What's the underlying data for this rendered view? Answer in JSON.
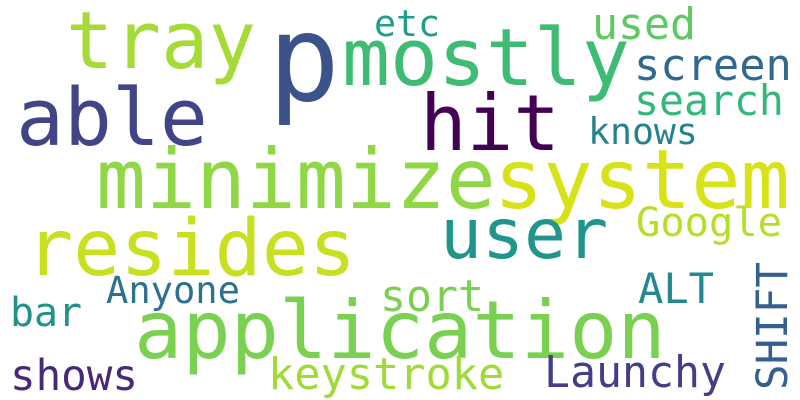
{
  "words": [
    {
      "id": "p",
      "text": "p",
      "color": "#3b528b"
    },
    {
      "id": "mostly",
      "text": "mostly",
      "color": "#3fbc73"
    },
    {
      "id": "tray",
      "text": "tray",
      "color": "#a5db36"
    },
    {
      "id": "able",
      "text": "able",
      "color": "#414487"
    },
    {
      "id": "hit",
      "text": "hit",
      "color": "#440154"
    },
    {
      "id": "minimize",
      "text": "minimize",
      "color": "#8fd744"
    },
    {
      "id": "system",
      "text": "system",
      "color": "#d8e219"
    },
    {
      "id": "resides",
      "text": "resides",
      "color": "#c8e020"
    },
    {
      "id": "user",
      "text": "user",
      "color": "#1f958b"
    },
    {
      "id": "application",
      "text": "application",
      "color": "#7ad151"
    },
    {
      "id": "etc",
      "text": "etc",
      "color": "#1f9e89"
    },
    {
      "id": "used",
      "text": "used",
      "color": "#5ec962"
    },
    {
      "id": "screen",
      "text": "screen",
      "color": "#31688e"
    },
    {
      "id": "search",
      "text": "search",
      "color": "#35b779"
    },
    {
      "id": "knows",
      "text": "knows",
      "color": "#26828e"
    },
    {
      "id": "Google",
      "text": "Google",
      "color": "#b5de2b"
    },
    {
      "id": "Anyone",
      "text": "Anyone",
      "color": "#2c728e"
    },
    {
      "id": "ALT",
      "text": "ALT",
      "color": "#23898e"
    },
    {
      "id": "sort",
      "text": "sort",
      "color": "#7ad151"
    },
    {
      "id": "bar",
      "text": "bar",
      "color": "#21918c"
    },
    {
      "id": "SHIFT",
      "text": "SHIFT",
      "color": "#355f8d"
    },
    {
      "id": "shows",
      "text": "shows",
      "color": "#482878"
    },
    {
      "id": "keystroke",
      "text": "keystroke",
      "color": "#a0da39"
    },
    {
      "id": "Launchy",
      "text": "Launchy",
      "color": "#433e85"
    }
  ]
}
